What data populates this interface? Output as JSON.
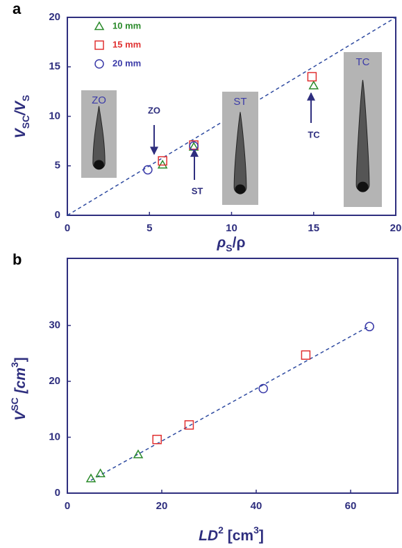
{
  "chart_data": [
    {
      "type": "scatter",
      "panel_label": "a",
      "xlabel": [
        "ρ",
        "S",
        "/ρ"
      ],
      "ylabel": [
        "V",
        "SC",
        "/V",
        "S"
      ],
      "xlim": [
        0,
        20
      ],
      "ylim": [
        0,
        20
      ],
      "xticks": [
        0,
        5,
        10,
        15,
        20
      ],
      "yticks": [
        0,
        5,
        10,
        15,
        20
      ],
      "series": [
        {
          "name": "10 mm",
          "color": "#2a8a2a",
          "marker": "triangle",
          "x": [
            5.8,
            7.7,
            15.0
          ],
          "values": [
            5.1,
            6.9,
            13.1
          ]
        },
        {
          "name": "15 mm",
          "color": "#e03030",
          "marker": "square",
          "x": [
            5.8,
            7.7,
            14.9
          ],
          "values": [
            5.5,
            7.1,
            14.0
          ]
        },
        {
          "name": "20 mm",
          "color": "#3a3aa8",
          "marker": "circle",
          "x": [
            4.9,
            7.7
          ],
          "values": [
            4.6,
            7.0
          ]
        }
      ],
      "reference_line": {
        "x": [
          0,
          20
        ],
        "values": [
          0,
          20
        ]
      },
      "annotations": [
        "ZO",
        "ST",
        "TC"
      ],
      "inset_labels": [
        "ZO",
        "ST",
        "TC"
      ]
    },
    {
      "type": "scatter",
      "panel_label": "b",
      "xlabel": [
        "LD",
        "2",
        " [cm",
        "3",
        "]"
      ],
      "ylabel": [
        "V",
        "SC",
        " [cm",
        "3",
        "]"
      ],
      "xlim": [
        0,
        70
      ],
      "ylim": [
        0,
        42
      ],
      "xticks": [
        0,
        20,
        40,
        60
      ],
      "yticks": [
        0,
        10,
        20,
        30
      ],
      "series": [
        {
          "name": "10 mm",
          "color": "#2a8a2a",
          "marker": "triangle",
          "x": [
            5,
            7,
            15
          ],
          "values": [
            2.6,
            3.5,
            6.9
          ]
        },
        {
          "name": "15 mm",
          "color": "#e03030",
          "marker": "square",
          "x": [
            19,
            25.8,
            50.5
          ],
          "values": [
            9.6,
            12.2,
            24.7
          ]
        },
        {
          "name": "20 mm",
          "color": "#3a3aa8",
          "marker": "circle",
          "x": [
            41.5,
            64
          ],
          "values": [
            18.7,
            29.8
          ]
        }
      ],
      "reference_line": {
        "x": [
          5,
          64
        ],
        "values": [
          2.3,
          29.9
        ]
      }
    }
  ]
}
